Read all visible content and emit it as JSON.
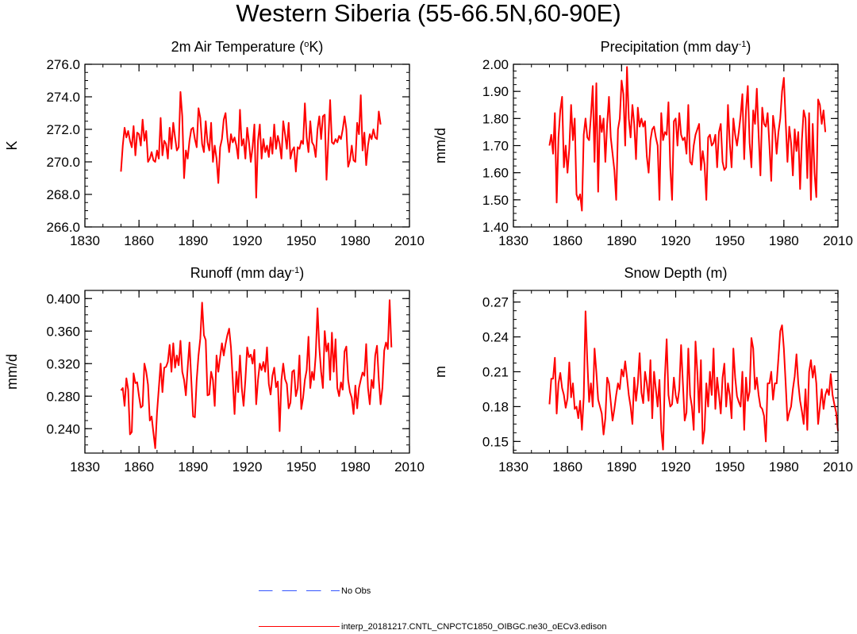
{
  "page_title": "Western Siberia (55-66.5N,60-90E)",
  "legend": {
    "entries": [
      {
        "label": "No Obs",
        "color": "#3355ff",
        "style": "dashed"
      },
      {
        "label": "interp_20181217.CNTL_CNPCTC1850_OIBGC.ne30_oECv3.edison",
        "color": "#ff0000",
        "style": "solid"
      }
    ]
  },
  "chart_data": [
    {
      "id": "temp",
      "type": "line",
      "title_main": "2m Air Temperature (",
      "title_sup": "o",
      "title_end": "K)",
      "ylabel": "K",
      "xlim": [
        1830,
        2010
      ],
      "ylim": [
        266,
        276
      ],
      "x_ticks": [
        1830,
        1860,
        1890,
        1920,
        1950,
        1980,
        2010
      ],
      "x_tick_labels": [
        "1830",
        "1860",
        "1890",
        "1920",
        "1950",
        "1980",
        "2010"
      ],
      "y_ticks": [
        266,
        268,
        270,
        272,
        274,
        276
      ],
      "y_tick_labels": [
        "266.0",
        "268.0",
        "270.0",
        "272.0",
        "274.0",
        "276.0"
      ],
      "x_minor_step": 10,
      "y_minor_step": 0.5,
      "series": [
        {
          "name": "model",
          "color": "#ff0000",
          "x_start": 1850,
          "values": [
            269.4,
            271.0,
            272.1,
            271.5,
            271.9,
            271.3,
            270.9,
            272.2,
            270.4,
            271.8,
            271.7,
            271.0,
            272.6,
            271.3,
            271.9,
            270.0,
            270.2,
            270.6,
            270.1,
            270.0,
            270.7,
            270.2,
            272.7,
            270.4,
            271.3,
            271.1,
            270.2,
            272.1,
            270.8,
            272.4,
            271.5,
            270.7,
            270.9,
            274.3,
            272.8,
            269.0,
            270.7,
            270.2,
            271.3,
            272.0,
            272.1,
            271.4,
            270.9,
            273.3,
            272.7,
            271.1,
            270.6,
            272.5,
            271.2,
            270.7,
            272.4,
            270.0,
            271.0,
            270.2,
            268.7,
            270.9,
            271.4,
            272.6,
            273.0,
            271.5,
            270.6,
            271.7,
            271.2,
            271.5,
            271.0,
            270.2,
            273.2,
            271.0,
            271.4,
            270.2,
            272.1,
            271.2,
            270.0,
            270.9,
            272.3,
            267.8,
            271.3,
            272.3,
            270.2,
            271.4,
            270.6,
            271.0,
            270.3,
            271.5,
            270.5,
            272.3,
            270.8,
            271.6,
            271.1,
            270.2,
            272.5,
            271.7,
            270.8,
            272.4,
            270.2,
            270.7,
            270.9,
            269.4,
            270.9,
            270.8,
            271.3,
            271.1,
            273.6,
            271.5,
            270.6,
            272.5,
            271.2,
            271.0,
            270.3,
            272.0,
            272.8,
            271.4,
            272.8,
            272.9,
            268.9,
            271.3,
            273.8,
            271.2,
            271.1,
            271.4,
            271.2,
            271.6,
            271.4,
            272.0,
            272.8,
            272.0,
            269.7,
            270.1,
            271.0,
            270.1,
            270.0,
            272.4,
            271.7,
            274.1,
            270.7,
            271.8,
            269.8,
            271.0,
            271.7,
            271.4,
            272.0,
            271.5,
            271.4,
            273.1,
            272.3
          ]
        }
      ]
    },
    {
      "id": "precip",
      "type": "line",
      "title_main": "Precipitation (mm day",
      "title_sup": "-1",
      "title_end": ")",
      "ylabel": "mm/d",
      "xlim": [
        1830,
        2010
      ],
      "ylim": [
        1.4,
        2.0
      ],
      "x_ticks": [
        1830,
        1860,
        1890,
        1920,
        1950,
        1980,
        2010
      ],
      "x_tick_labels": [
        "1830",
        "1860",
        "1890",
        "1920",
        "1950",
        "1980",
        "2010"
      ],
      "y_ticks": [
        1.4,
        1.5,
        1.6,
        1.7,
        1.8,
        1.9,
        2.0
      ],
      "y_tick_labels": [
        "1.40",
        "1.50",
        "1.60",
        "1.70",
        "1.80",
        "1.90",
        "2.00"
      ],
      "x_minor_step": 10,
      "y_minor_step": 0.025,
      "series": [
        {
          "name": "model",
          "color": "#ff0000",
          "x_start": 1850,
          "values": [
            1.7,
            1.74,
            1.67,
            1.82,
            1.49,
            1.73,
            1.83,
            1.88,
            1.62,
            1.7,
            1.6,
            1.69,
            1.85,
            1.72,
            1.8,
            1.52,
            1.5,
            1.52,
            1.46,
            1.74,
            1.8,
            1.73,
            1.72,
            1.81,
            1.92,
            1.64,
            1.93,
            1.53,
            1.81,
            1.75,
            1.8,
            1.64,
            1.78,
            1.88,
            1.73,
            1.67,
            1.61,
            1.5,
            1.76,
            1.8,
            1.94,
            1.89,
            1.7,
            1.99,
            1.8,
            1.73,
            1.85,
            1.78,
            1.65,
            1.84,
            1.77,
            1.8,
            1.77,
            1.79,
            1.66,
            1.6,
            1.72,
            1.76,
            1.77,
            1.73,
            1.7,
            1.5,
            1.82,
            1.72,
            1.75,
            1.74,
            1.86,
            1.62,
            1.5,
            1.79,
            1.8,
            1.7,
            1.82,
            1.74,
            1.72,
            1.73,
            1.67,
            1.85,
            1.64,
            1.63,
            1.7,
            1.74,
            1.76,
            1.78,
            1.61,
            1.68,
            1.63,
            1.5,
            1.73,
            1.74,
            1.7,
            1.71,
            1.74,
            1.62,
            1.75,
            1.78,
            1.64,
            1.61,
            1.62,
            1.85,
            1.71,
            1.62,
            1.8,
            1.74,
            1.7,
            1.75,
            1.81,
            1.89,
            1.65,
            1.83,
            1.92,
            1.71,
            1.62,
            1.83,
            1.78,
            1.91,
            1.74,
            1.59,
            1.84,
            1.78,
            1.77,
            1.82,
            1.7,
            1.57,
            1.81,
            1.76,
            1.67,
            1.75,
            1.8,
            1.9,
            1.95,
            1.79,
            1.64,
            1.77,
            1.71,
            1.59,
            1.76,
            1.68,
            1.75,
            1.54,
            1.72,
            1.83,
            1.8,
            1.58,
            1.82,
            1.5,
            1.78,
            1.6,
            1.51,
            1.87,
            1.85,
            1.78,
            1.83,
            1.75
          ]
        }
      ]
    },
    {
      "id": "runoff",
      "type": "line",
      "title_main": "Runoff (mm day",
      "title_sup": "-1",
      "title_end": ")",
      "ylabel": "mm/d",
      "xlim": [
        1830,
        2010
      ],
      "ylim": [
        0.21,
        0.41
      ],
      "x_ticks": [
        1830,
        1860,
        1890,
        1920,
        1950,
        1980,
        2010
      ],
      "x_tick_labels": [
        "1830",
        "1860",
        "1890",
        "1920",
        "1950",
        "1980",
        "2010"
      ],
      "y_ticks": [
        0.24,
        0.28,
        0.32,
        0.36,
        0.4
      ],
      "y_tick_labels": [
        "0.240",
        "0.280",
        "0.320",
        "0.360",
        "0.400"
      ],
      "x_minor_step": 10,
      "y_minor_step": 0.01,
      "series": [
        {
          "name": "model",
          "color": "#ff0000",
          "x_start": 1850,
          "values": [
            0.287,
            0.29,
            0.268,
            0.302,
            0.288,
            0.233,
            0.236,
            0.308,
            0.296,
            0.297,
            0.28,
            0.266,
            0.268,
            0.32,
            0.31,
            0.294,
            0.25,
            0.255,
            0.235,
            0.216,
            0.26,
            0.29,
            0.32,
            0.285,
            0.315,
            0.316,
            0.322,
            0.343,
            0.31,
            0.345,
            0.315,
            0.33,
            0.318,
            0.348,
            0.31,
            0.3,
            0.281,
            0.315,
            0.346,
            0.3,
            0.255,
            0.254,
            0.3,
            0.33,
            0.351,
            0.395,
            0.355,
            0.349,
            0.281,
            0.282,
            0.31,
            0.3,
            0.268,
            0.33,
            0.31,
            0.328,
            0.345,
            0.33,
            0.344,
            0.355,
            0.363,
            0.34,
            0.3,
            0.258,
            0.31,
            0.285,
            0.33,
            0.29,
            0.268,
            0.3,
            0.34,
            0.328,
            0.331,
            0.32,
            0.337,
            0.27,
            0.3,
            0.32,
            0.312,
            0.322,
            0.31,
            0.34,
            0.295,
            0.282,
            0.305,
            0.315,
            0.291,
            0.298,
            0.237,
            0.3,
            0.32,
            0.301,
            0.295,
            0.265,
            0.272,
            0.31,
            0.312,
            0.28,
            0.29,
            0.33,
            0.264,
            0.278,
            0.3,
            0.312,
            0.353,
            0.29,
            0.31,
            0.3,
            0.33,
            0.388,
            0.34,
            0.31,
            0.29,
            0.36,
            0.335,
            0.345,
            0.3,
            0.358,
            0.31,
            0.35,
            0.29,
            0.28,
            0.297,
            0.288,
            0.335,
            0.341,
            0.3,
            0.285,
            0.278,
            0.258,
            0.293,
            0.265,
            0.29,
            0.3,
            0.309,
            0.305,
            0.344,
            0.29,
            0.27,
            0.3,
            0.29,
            0.33,
            0.342,
            0.3,
            0.27,
            0.29,
            0.336,
            0.346,
            0.338,
            0.398,
            0.34
          ]
        }
      ]
    },
    {
      "id": "snow",
      "type": "line",
      "title_main": "Snow Depth (m)",
      "title_sup": "",
      "title_end": "",
      "ylabel": "m",
      "xlim": [
        1830,
        2010
      ],
      "ylim": [
        0.14,
        0.28
      ],
      "x_ticks": [
        1830,
        1860,
        1890,
        1920,
        1950,
        1980,
        2010
      ],
      "x_tick_labels": [
        "1830",
        "1860",
        "1890",
        "1920",
        "1950",
        "1980",
        "2010"
      ],
      "y_ticks": [
        0.15,
        0.18,
        0.21,
        0.24,
        0.27
      ],
      "y_tick_labels": [
        "0.15",
        "0.18",
        "0.21",
        "0.24",
        "0.27"
      ],
      "x_minor_step": 10,
      "y_minor_step": 0.0075,
      "series": [
        {
          "name": "model",
          "color": "#ff0000",
          "x_start": 1850,
          "values": [
            0.182,
            0.204,
            0.204,
            0.222,
            0.174,
            0.2,
            0.209,
            0.196,
            0.19,
            0.179,
            0.187,
            0.218,
            0.188,
            0.2,
            0.178,
            0.18,
            0.17,
            0.185,
            0.16,
            0.188,
            0.262,
            0.219,
            0.184,
            0.2,
            0.18,
            0.23,
            0.21,
            0.186,
            0.18,
            0.174,
            0.156,
            0.17,
            0.205,
            0.2,
            0.184,
            0.168,
            0.178,
            0.19,
            0.2,
            0.195,
            0.212,
            0.206,
            0.219,
            0.205,
            0.19,
            0.18,
            0.165,
            0.205,
            0.185,
            0.2,
            0.226,
            0.192,
            0.183,
            0.21,
            0.2,
            0.185,
            0.22,
            0.17,
            0.21,
            0.195,
            0.18,
            0.203,
            0.16,
            0.143,
            0.205,
            0.238,
            0.19,
            0.18,
            0.182,
            0.205,
            0.19,
            0.183,
            0.195,
            0.233,
            0.2,
            0.168,
            0.175,
            0.23,
            0.19,
            0.18,
            0.16,
            0.236,
            0.21,
            0.175,
            0.22,
            0.148,
            0.16,
            0.2,
            0.18,
            0.21,
            0.19,
            0.23,
            0.178,
            0.205,
            0.19,
            0.174,
            0.205,
            0.217,
            0.18,
            0.2,
            0.19,
            0.17,
            0.23,
            0.205,
            0.189,
            0.184,
            0.18,
            0.21,
            0.16,
            0.205,
            0.185,
            0.193,
            0.239,
            0.23,
            0.195,
            0.205,
            0.19,
            0.18,
            0.178,
            0.172,
            0.15,
            0.2,
            0.2,
            0.21,
            0.186,
            0.2,
            0.2,
            0.222,
            0.245,
            0.25,
            0.23,
            0.2,
            0.168,
            0.175,
            0.18,
            0.195,
            0.206,
            0.225,
            0.2,
            0.185,
            0.176,
            0.165,
            0.195,
            0.16,
            0.21,
            0.22,
            0.205,
            0.215,
            0.2,
            0.165,
            0.18,
            0.195,
            0.178,
            0.19,
            0.195,
            0.19,
            0.208,
            0.19,
            0.182,
            0.175,
            0.159
          ]
        }
      ]
    }
  ]
}
